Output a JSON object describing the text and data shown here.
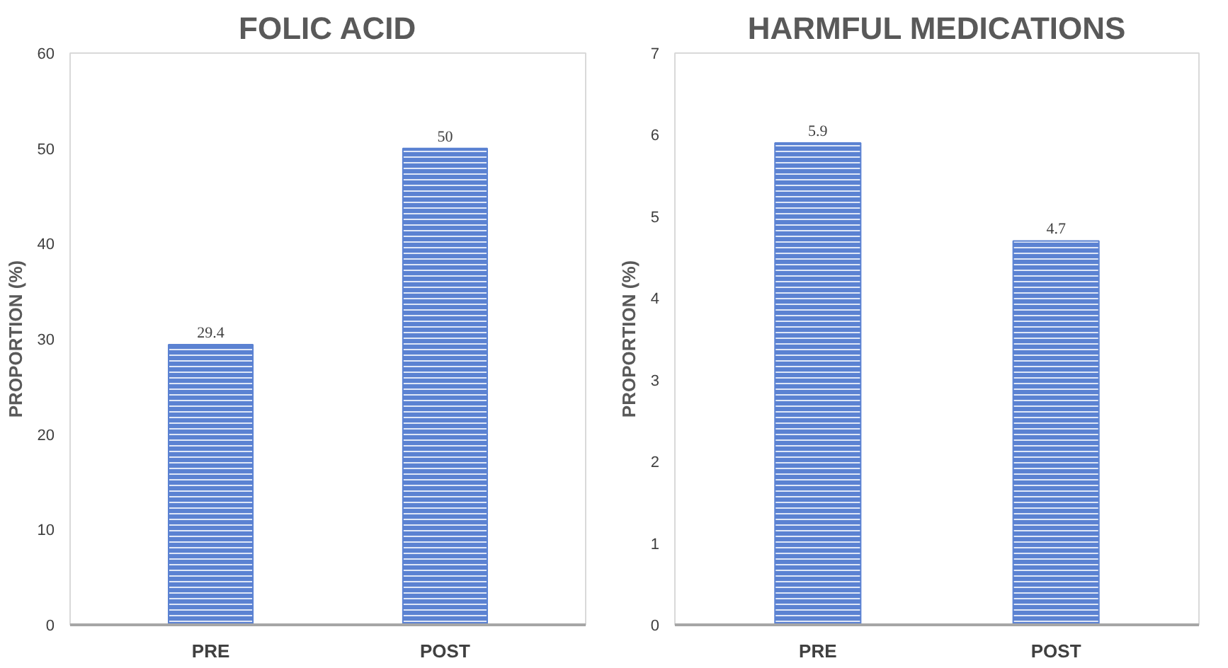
{
  "chart_data": [
    {
      "type": "bar",
      "title": "FOLIC ACID",
      "ylabel": "PROPORTION (%)",
      "categories": [
        "PRE",
        "POST"
      ],
      "values": [
        29.4,
        50
      ],
      "color": "#5b82d2",
      "ylim": [
        0,
        60
      ],
      "yticks": [
        0,
        10,
        20,
        30,
        40,
        50,
        60
      ],
      "data_labels": true,
      "grid": false
    },
    {
      "type": "bar",
      "title": "HARMFUL MEDICATIONS",
      "ylabel": "PROPORTION (%)",
      "categories": [
        "PRE",
        "POST"
      ],
      "values": [
        5.9,
        4.7
      ],
      "color": "#5b82d2",
      "ylim": [
        0,
        7
      ],
      "yticks": [
        0,
        1,
        2,
        3,
        4,
        5,
        6,
        7
      ],
      "data_labels": true,
      "grid": false
    }
  ]
}
